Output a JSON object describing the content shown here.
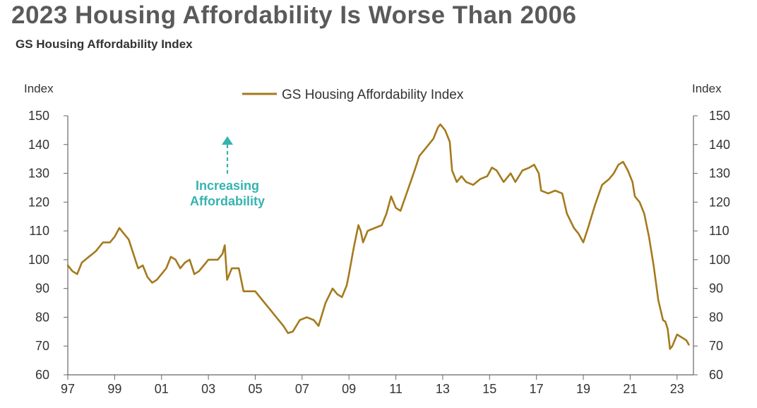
{
  "page": {
    "title": "2023 Housing Affordability Is Worse Than 2006",
    "subtitle": "GS Housing Affordability Index"
  },
  "chart_data": {
    "type": "line",
    "title": "2023 Housing Affordability Is Worse Than 2006",
    "subtitle": "GS Housing Affordability Index",
    "ylabel_left": "Index",
    "ylabel_right": "Index",
    "ylim": [
      60,
      150
    ],
    "yticks": [
      60,
      70,
      80,
      90,
      100,
      110,
      120,
      130,
      140,
      150
    ],
    "xlim": [
      1997,
      2023.7
    ],
    "xticks": [
      {
        "x": 1997,
        "label": "97"
      },
      {
        "x": 1999,
        "label": "99"
      },
      {
        "x": 2001,
        "label": "01"
      },
      {
        "x": 2003,
        "label": "03"
      },
      {
        "x": 2005,
        "label": "05"
      },
      {
        "x": 2007,
        "label": "07"
      },
      {
        "x": 2009,
        "label": "09"
      },
      {
        "x": 2011,
        "label": "11"
      },
      {
        "x": 2013,
        "label": "13"
      },
      {
        "x": 2015,
        "label": "15"
      },
      {
        "x": 2017,
        "label": "17"
      },
      {
        "x": 2019,
        "label": "19"
      },
      {
        "x": 2021,
        "label": "21"
      },
      {
        "x": 2023,
        "label": "23"
      }
    ],
    "grid": false,
    "legend": {
      "position": "top-center"
    },
    "annotation": {
      "lines": [
        "Increasing",
        "Affordability"
      ],
      "color": "#35b3b0",
      "arrow": "up"
    },
    "series": [
      {
        "name": "GS Housing Affordability Index",
        "color": "#a47a1c",
        "points": [
          [
            1997.0,
            98
          ],
          [
            1997.2,
            96
          ],
          [
            1997.4,
            95
          ],
          [
            1997.6,
            99
          ],
          [
            1997.9,
            101
          ],
          [
            1998.2,
            103
          ],
          [
            1998.5,
            106
          ],
          [
            1998.8,
            106
          ],
          [
            1999.0,
            108
          ],
          [
            1999.2,
            111
          ],
          [
            1999.4,
            109
          ],
          [
            1999.6,
            107
          ],
          [
            1999.8,
            102
          ],
          [
            2000.0,
            97
          ],
          [
            2000.2,
            98
          ],
          [
            2000.4,
            94
          ],
          [
            2000.6,
            92
          ],
          [
            2000.8,
            93
          ],
          [
            2001.0,
            95
          ],
          [
            2001.2,
            97
          ],
          [
            2001.4,
            101
          ],
          [
            2001.6,
            100
          ],
          [
            2001.8,
            97
          ],
          [
            2002.0,
            99
          ],
          [
            2002.2,
            100
          ],
          [
            2002.4,
            95
          ],
          [
            2002.6,
            96
          ],
          [
            2002.8,
            98
          ],
          [
            2003.0,
            100
          ],
          [
            2003.2,
            100
          ],
          [
            2003.4,
            100
          ],
          [
            2003.6,
            102
          ],
          [
            2003.7,
            105
          ],
          [
            2003.8,
            93
          ],
          [
            2004.0,
            97
          ],
          [
            2004.3,
            97
          ],
          [
            2004.5,
            89
          ],
          [
            2004.8,
            89
          ],
          [
            2005.0,
            89
          ],
          [
            2005.3,
            86
          ],
          [
            2005.6,
            83
          ],
          [
            2005.9,
            80
          ],
          [
            2006.2,
            77
          ],
          [
            2006.4,
            74.5
          ],
          [
            2006.6,
            75
          ],
          [
            2006.9,
            79
          ],
          [
            2007.2,
            80
          ],
          [
            2007.5,
            79
          ],
          [
            2007.7,
            77
          ],
          [
            2008.0,
            85
          ],
          [
            2008.3,
            90
          ],
          [
            2008.5,
            88
          ],
          [
            2008.7,
            87
          ],
          [
            2008.9,
            91
          ],
          [
            2009.0,
            95
          ],
          [
            2009.2,
            104
          ],
          [
            2009.4,
            112
          ],
          [
            2009.5,
            110
          ],
          [
            2009.6,
            106
          ],
          [
            2009.8,
            110
          ],
          [
            2010.1,
            111
          ],
          [
            2010.4,
            112
          ],
          [
            2010.6,
            116
          ],
          [
            2010.8,
            122
          ],
          [
            2011.0,
            118
          ],
          [
            2011.2,
            117
          ],
          [
            2011.5,
            124
          ],
          [
            2011.8,
            131
          ],
          [
            2012.0,
            136
          ],
          [
            2012.3,
            139
          ],
          [
            2012.6,
            142
          ],
          [
            2012.8,
            146
          ],
          [
            2012.9,
            147
          ],
          [
            2013.1,
            145
          ],
          [
            2013.3,
            141
          ],
          [
            2013.4,
            131
          ],
          [
            2013.6,
            127
          ],
          [
            2013.8,
            129
          ],
          [
            2014.0,
            127
          ],
          [
            2014.3,
            126
          ],
          [
            2014.6,
            128
          ],
          [
            2014.9,
            129
          ],
          [
            2015.1,
            132
          ],
          [
            2015.3,
            131
          ],
          [
            2015.6,
            127
          ],
          [
            2015.9,
            130
          ],
          [
            2016.1,
            127
          ],
          [
            2016.4,
            131
          ],
          [
            2016.7,
            132
          ],
          [
            2016.9,
            133
          ],
          [
            2017.1,
            130
          ],
          [
            2017.2,
            124
          ],
          [
            2017.5,
            123
          ],
          [
            2017.8,
            124
          ],
          [
            2018.1,
            123
          ],
          [
            2018.3,
            116
          ],
          [
            2018.6,
            111
          ],
          [
            2018.8,
            109
          ],
          [
            2019.0,
            106
          ],
          [
            2019.2,
            111
          ],
          [
            2019.5,
            119
          ],
          [
            2019.8,
            126
          ],
          [
            2020.1,
            128
          ],
          [
            2020.3,
            130
          ],
          [
            2020.5,
            133
          ],
          [
            2020.7,
            134
          ],
          [
            2020.9,
            131
          ],
          [
            2021.1,
            127
          ],
          [
            2021.2,
            122
          ],
          [
            2021.4,
            120
          ],
          [
            2021.6,
            116
          ],
          [
            2021.8,
            108
          ],
          [
            2022.0,
            98
          ],
          [
            2022.2,
            86
          ],
          [
            2022.4,
            79
          ],
          [
            2022.5,
            78.5
          ],
          [
            2022.6,
            76
          ],
          [
            2022.7,
            69
          ],
          [
            2022.8,
            70
          ],
          [
            2023.0,
            74
          ],
          [
            2023.2,
            73
          ],
          [
            2023.4,
            72
          ],
          [
            2023.5,
            70.5
          ]
        ]
      }
    ]
  }
}
